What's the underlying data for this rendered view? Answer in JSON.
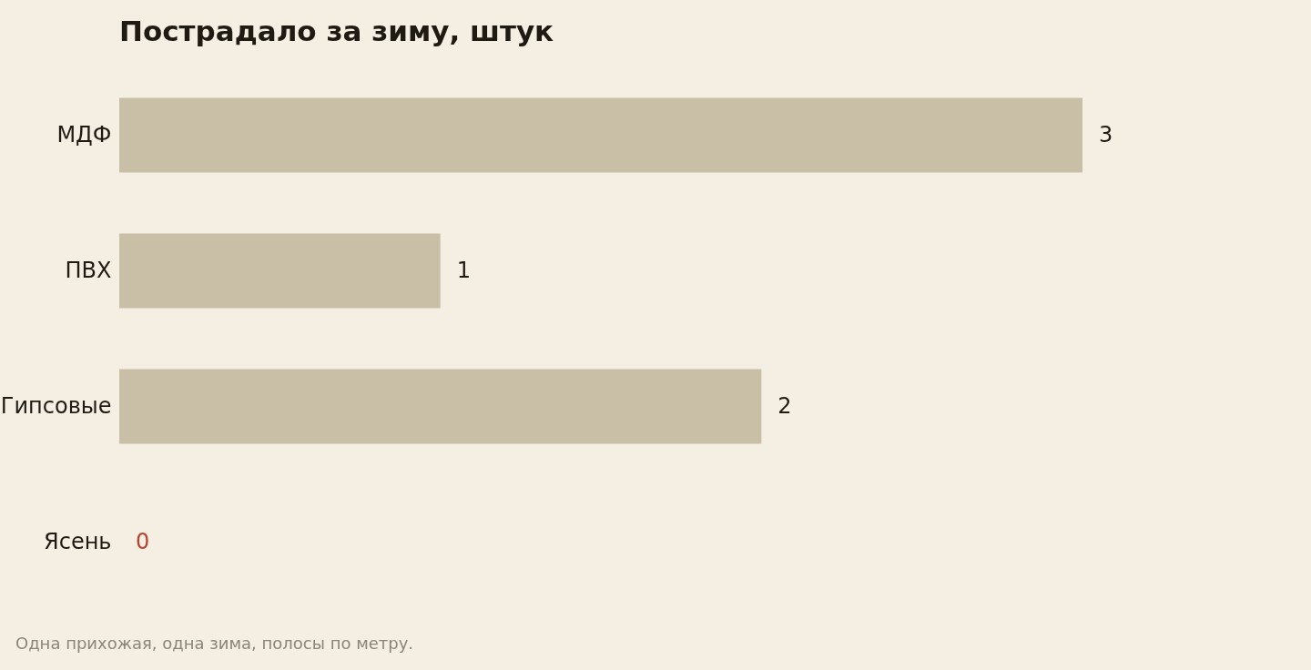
{
  "chart_data": {
    "type": "bar",
    "orientation": "horizontal",
    "title": "Пострадало за зиму, штук",
    "categories": [
      "МДФ",
      "ПВХ",
      "Гипсовые",
      "Ясень"
    ],
    "values": [
      3,
      1,
      2,
      0
    ],
    "colors": [
      "#c9bfa7",
      "#c9bfa7",
      "#c9bfa7",
      "#b5452f"
    ],
    "data_labels": true,
    "annotations": [
      "Одна прихожая, одна зима, полосы по метру."
    ]
  }
}
